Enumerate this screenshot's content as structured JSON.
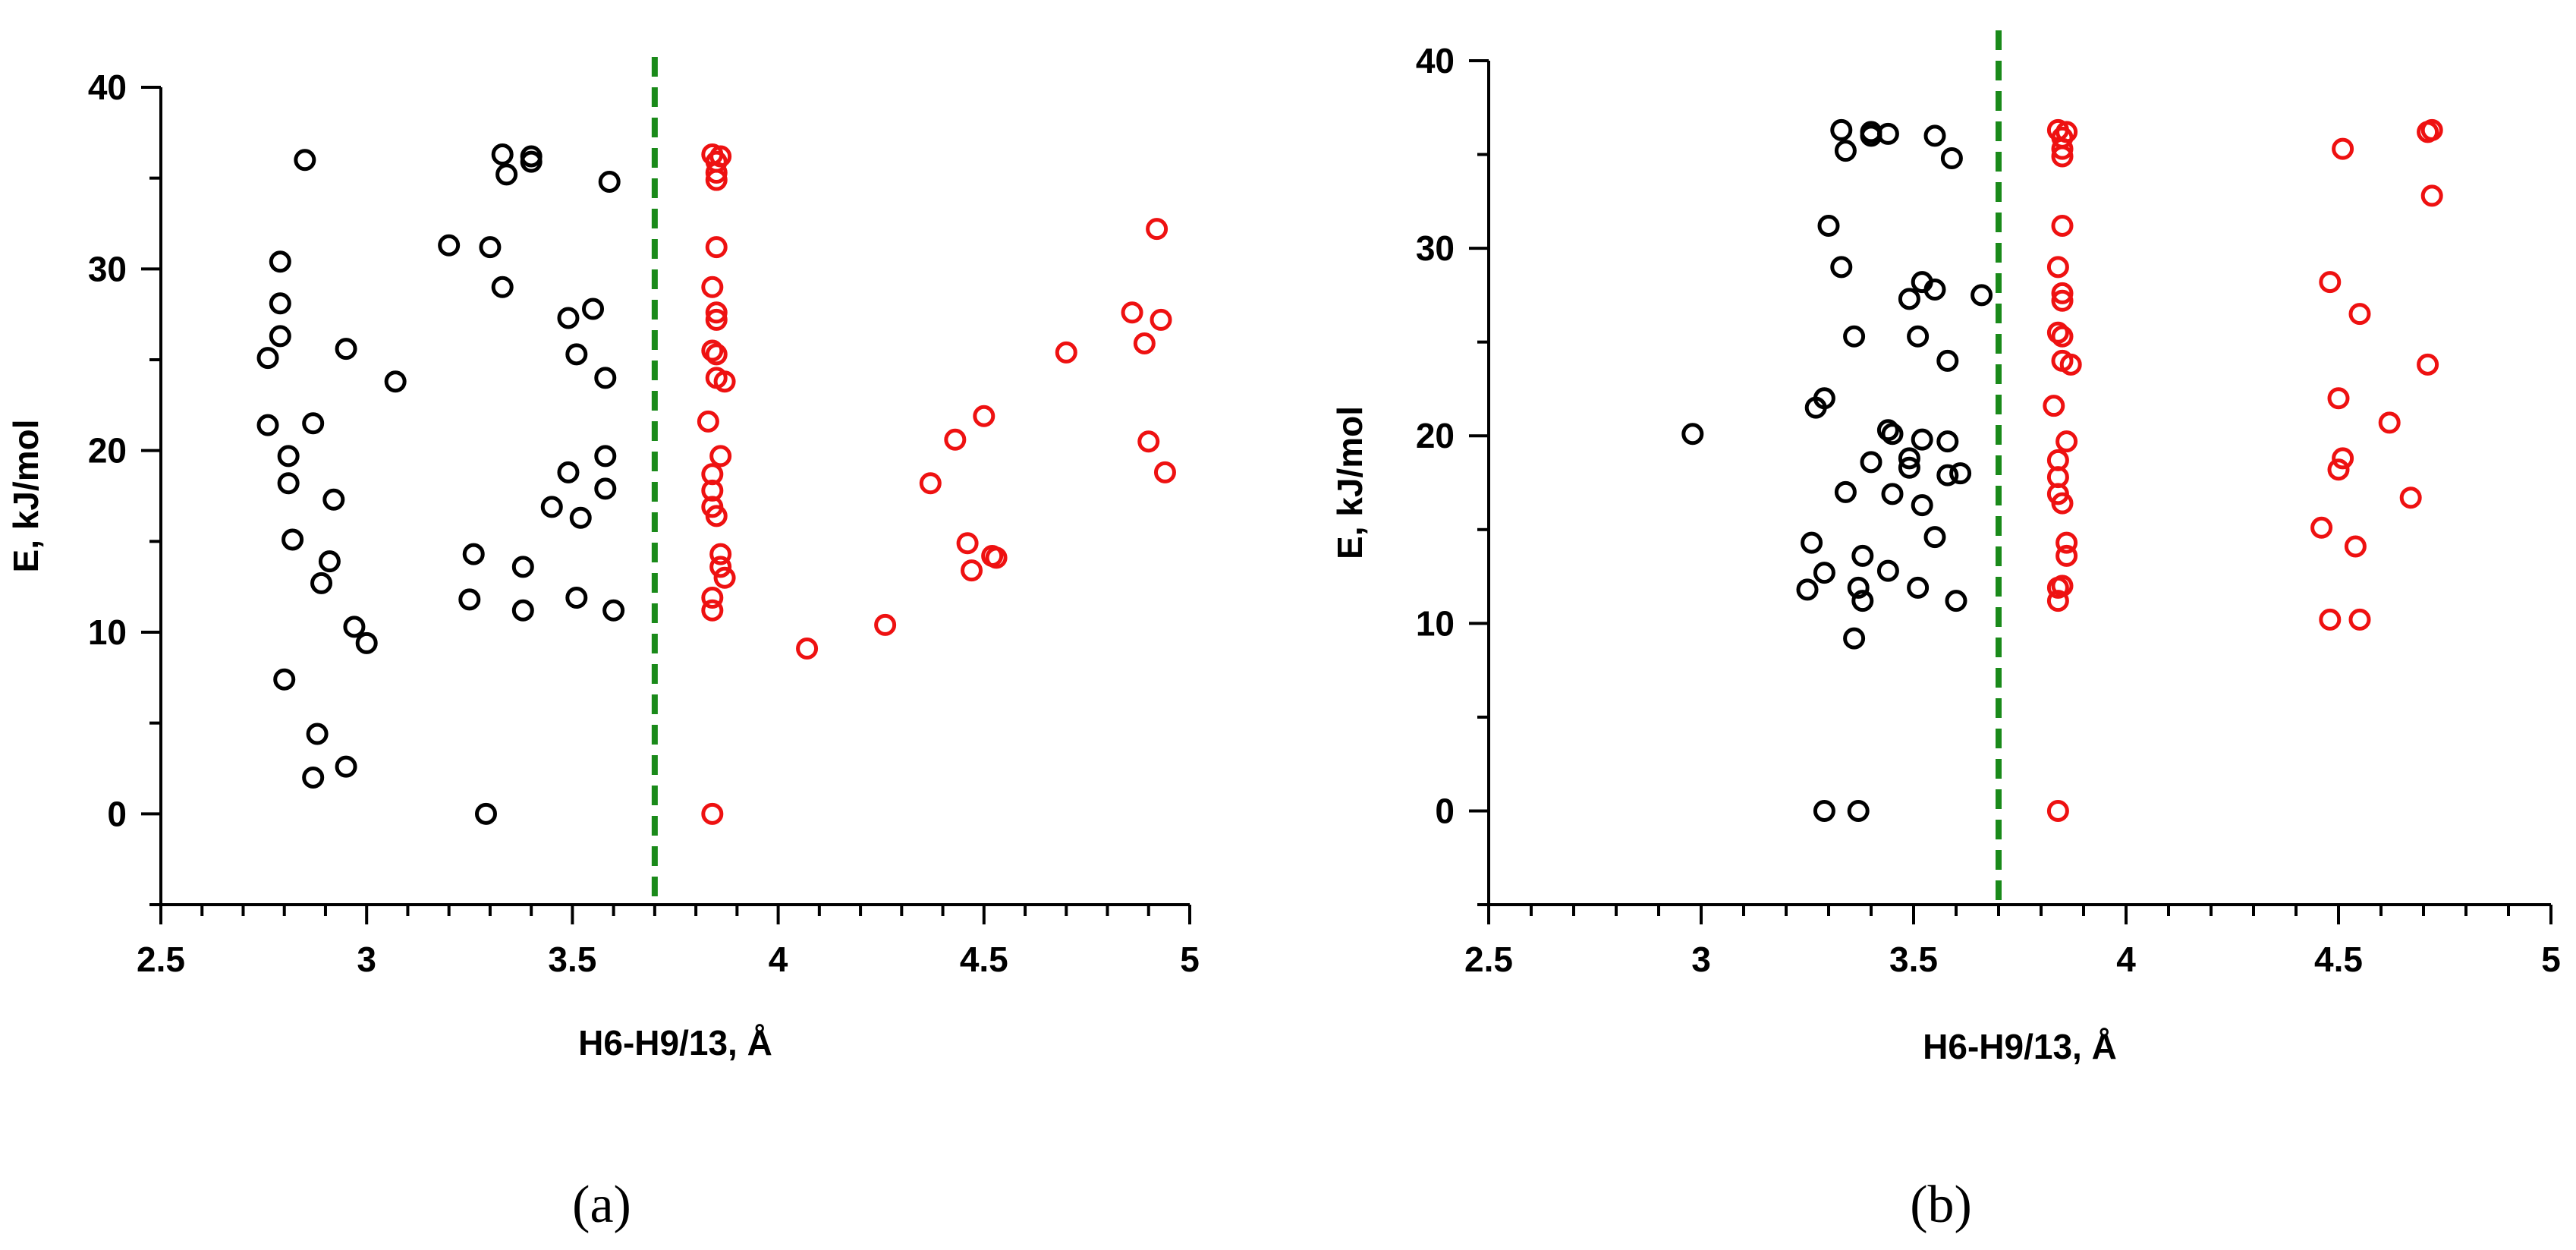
{
  "colors": {
    "black_series": "#000000",
    "red_series": "#ee1111",
    "threshold": "#1a8a1a"
  },
  "chart_data": [
    {
      "type": "scatter",
      "panel_label": "(a)",
      "xlabel": "H6-H9/13, Å",
      "ylabel": "E, kJ/mol",
      "xlim": [
        2.5,
        5
      ],
      "ylim": [
        -5,
        40
      ],
      "xticks": [
        2.5,
        3,
        3.5,
        4,
        4.5,
        5
      ],
      "xtick_labels": [
        "2.5",
        "3",
        "3.5",
        "4",
        "4.5",
        "5"
      ],
      "yticks": [
        0,
        10,
        20,
        30,
        40
      ],
      "ytick_labels": [
        "0",
        "10",
        "20",
        "30",
        "40"
      ],
      "threshold_x": 3.7,
      "series": [
        {
          "name": "black",
          "color": "#000000",
          "points": [
            [
              2.85,
              36.0
            ],
            [
              2.79,
              30.4
            ],
            [
              2.79,
              28.1
            ],
            [
              2.79,
              26.3
            ],
            [
              2.76,
              25.1
            ],
            [
              2.95,
              25.6
            ],
            [
              3.07,
              23.8
            ],
            [
              2.76,
              21.4
            ],
            [
              2.87,
              21.5
            ],
            [
              2.81,
              19.7
            ],
            [
              2.81,
              18.2
            ],
            [
              2.92,
              17.3
            ],
            [
              2.82,
              15.1
            ],
            [
              2.91,
              13.9
            ],
            [
              2.89,
              12.7
            ],
            [
              2.97,
              10.3
            ],
            [
              3.0,
              9.4
            ],
            [
              2.8,
              7.4
            ],
            [
              2.88,
              4.4
            ],
            [
              2.95,
              2.6
            ],
            [
              2.87,
              2.0
            ],
            [
              3.33,
              36.3
            ],
            [
              3.34,
              35.2
            ],
            [
              3.4,
              36.2
            ],
            [
              3.4,
              35.9
            ],
            [
              3.59,
              34.8
            ],
            [
              3.2,
              31.3
            ],
            [
              3.3,
              31.2
            ],
            [
              3.33,
              29.0
            ],
            [
              3.55,
              27.8
            ],
            [
              3.49,
              27.3
            ],
            [
              3.51,
              25.3
            ],
            [
              3.58,
              24.0
            ],
            [
              3.58,
              19.7
            ],
            [
              3.49,
              18.8
            ],
            [
              3.58,
              17.9
            ],
            [
              3.45,
              16.9
            ],
            [
              3.52,
              16.3
            ],
            [
              3.26,
              14.3
            ],
            [
              3.38,
              13.6
            ],
            [
              3.25,
              11.8
            ],
            [
              3.51,
              11.9
            ],
            [
              3.38,
              11.2
            ],
            [
              3.6,
              11.2
            ],
            [
              3.29,
              0.0
            ]
          ]
        },
        {
          "name": "red",
          "color": "#ee1111",
          "points": [
            [
              3.84,
              36.3
            ],
            [
              3.86,
              36.2
            ],
            [
              3.85,
              35.9
            ],
            [
              3.85,
              35.3
            ],
            [
              3.85,
              34.9
            ],
            [
              3.85,
              31.2
            ],
            [
              3.84,
              29.0
            ],
            [
              3.85,
              27.6
            ],
            [
              3.85,
              27.2
            ],
            [
              3.84,
              25.5
            ],
            [
              3.85,
              25.3
            ],
            [
              3.85,
              24.0
            ],
            [
              3.87,
              23.8
            ],
            [
              3.83,
              21.6
            ],
            [
              3.86,
              19.7
            ],
            [
              3.84,
              18.7
            ],
            [
              3.84,
              17.8
            ],
            [
              3.84,
              16.9
            ],
            [
              3.85,
              16.4
            ],
            [
              3.86,
              14.3
            ],
            [
              3.86,
              13.6
            ],
            [
              3.87,
              13.0
            ],
            [
              3.84,
              11.9
            ],
            [
              3.84,
              11.2
            ],
            [
              3.84,
              0.0
            ],
            [
              4.07,
              9.1
            ],
            [
              4.26,
              10.4
            ],
            [
              4.37,
              18.2
            ],
            [
              4.43,
              20.6
            ],
            [
              4.5,
              21.9
            ],
            [
              4.46,
              14.9
            ],
            [
              4.47,
              13.4
            ],
            [
              4.52,
              14.2
            ],
            [
              4.53,
              14.1
            ],
            [
              4.7,
              25.4
            ],
            [
              4.86,
              27.6
            ],
            [
              4.89,
              25.9
            ],
            [
              4.92,
              32.2
            ],
            [
              4.93,
              27.2
            ],
            [
              4.9,
              20.5
            ],
            [
              4.94,
              18.8
            ]
          ]
        }
      ]
    },
    {
      "type": "scatter",
      "panel_label": "(b)",
      "xlabel": "H6-H9/13, Å",
      "ylabel": "E, kJ/mol",
      "xlim": [
        2.5,
        5
      ],
      "ylim": [
        -5,
        40
      ],
      "xticks": [
        2.5,
        3,
        3.5,
        4,
        4.5,
        5
      ],
      "xtick_labels": [
        "2.5",
        "3",
        "3.5",
        "4",
        "4.5",
        "5"
      ],
      "yticks": [
        0,
        10,
        20,
        30,
        40
      ],
      "ytick_labels": [
        "0",
        "10",
        "20",
        "30",
        "40"
      ],
      "threshold_x": 3.7,
      "series": [
        {
          "name": "black",
          "color": "#000000",
          "points": [
            [
              2.98,
              20.1
            ],
            [
              3.33,
              36.3
            ],
            [
              3.34,
              35.2
            ],
            [
              3.4,
              36.2
            ],
            [
              3.4,
              36.0
            ],
            [
              3.44,
              36.1
            ],
            [
              3.55,
              36.0
            ],
            [
              3.59,
              34.8
            ],
            [
              3.3,
              31.2
            ],
            [
              3.33,
              29.0
            ],
            [
              3.52,
              28.2
            ],
            [
              3.55,
              27.8
            ],
            [
              3.49,
              27.3
            ],
            [
              3.66,
              27.5
            ],
            [
              3.36,
              25.3
            ],
            [
              3.51,
              25.3
            ],
            [
              3.58,
              24.0
            ],
            [
              3.29,
              22.0
            ],
            [
              3.27,
              21.5
            ],
            [
              3.44,
              20.3
            ],
            [
              3.45,
              20.1
            ],
            [
              3.52,
              19.8
            ],
            [
              3.58,
              19.7
            ],
            [
              3.4,
              18.6
            ],
            [
              3.49,
              18.8
            ],
            [
              3.49,
              18.3
            ],
            [
              3.58,
              17.9
            ],
            [
              3.61,
              18.0
            ],
            [
              3.34,
              17.0
            ],
            [
              3.45,
              16.9
            ],
            [
              3.52,
              16.3
            ],
            [
              3.55,
              14.6
            ],
            [
              3.26,
              14.3
            ],
            [
              3.38,
              13.6
            ],
            [
              3.29,
              12.7
            ],
            [
              3.44,
              12.8
            ],
            [
              3.25,
              11.8
            ],
            [
              3.37,
              11.9
            ],
            [
              3.51,
              11.9
            ],
            [
              3.38,
              11.2
            ],
            [
              3.6,
              11.2
            ],
            [
              3.36,
              9.2
            ],
            [
              3.29,
              0.0
            ],
            [
              3.37,
              0.0
            ]
          ]
        },
        {
          "name": "red",
          "color": "#ee1111",
          "points": [
            [
              3.84,
              36.3
            ],
            [
              3.86,
              36.2
            ],
            [
              3.85,
              35.9
            ],
            [
              3.85,
              35.3
            ],
            [
              3.85,
              34.9
            ],
            [
              3.85,
              31.2
            ],
            [
              3.84,
              29.0
            ],
            [
              3.85,
              27.6
            ],
            [
              3.85,
              27.2
            ],
            [
              3.84,
              25.5
            ],
            [
              3.85,
              25.3
            ],
            [
              3.85,
              24.0
            ],
            [
              3.87,
              23.8
            ],
            [
              3.83,
              21.6
            ],
            [
              3.86,
              19.7
            ],
            [
              3.84,
              18.7
            ],
            [
              3.84,
              17.8
            ],
            [
              3.84,
              16.9
            ],
            [
              3.85,
              16.4
            ],
            [
              3.86,
              14.3
            ],
            [
              3.86,
              13.6
            ],
            [
              3.84,
              11.9
            ],
            [
              3.85,
              12.0
            ],
            [
              3.84,
              11.2
            ],
            [
              3.84,
              0.0
            ],
            [
              4.71,
              36.2
            ],
            [
              4.72,
              36.3
            ],
            [
              4.51,
              35.3
            ],
            [
              4.72,
              32.8
            ],
            [
              4.48,
              28.2
            ],
            [
              4.55,
              26.5
            ],
            [
              4.71,
              23.8
            ],
            [
              4.5,
              22.0
            ],
            [
              4.62,
              20.7
            ],
            [
              4.51,
              18.8
            ],
            [
              4.5,
              18.2
            ],
            [
              4.67,
              16.7
            ],
            [
              4.46,
              15.1
            ],
            [
              4.54,
              14.1
            ],
            [
              4.48,
              10.2
            ],
            [
              4.55,
              10.2
            ]
          ]
        }
      ]
    }
  ]
}
